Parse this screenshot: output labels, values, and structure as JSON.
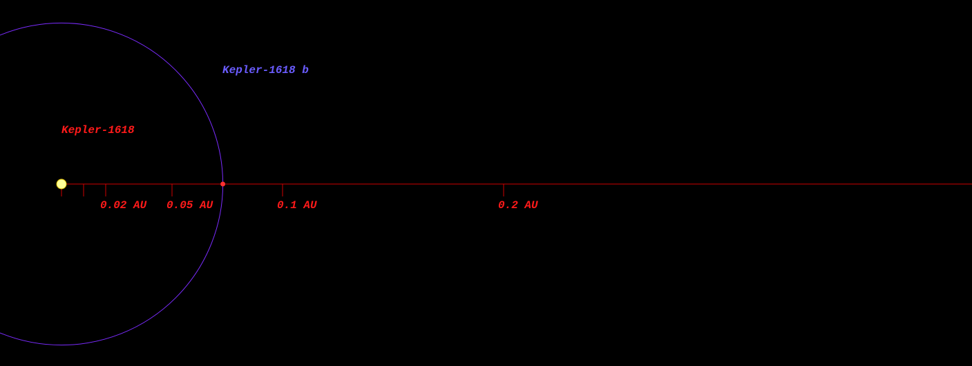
{
  "star": {
    "name": "Kepler-1618"
  },
  "planet": {
    "name": "Kepler-1618 b",
    "semi_major_axis_au": 0.073
  },
  "scale": {
    "ticks": [
      {
        "value": 0,
        "label": null
      },
      {
        "value": 0.01,
        "label": null
      },
      {
        "value": 0.02,
        "label": "0.02 AU"
      },
      {
        "value": 0.05,
        "label": "0.05 AU"
      },
      {
        "value": 0.1,
        "label": "0.1 AU"
      },
      {
        "value": 0.2,
        "label": "0.2 AU"
      }
    ]
  }
}
